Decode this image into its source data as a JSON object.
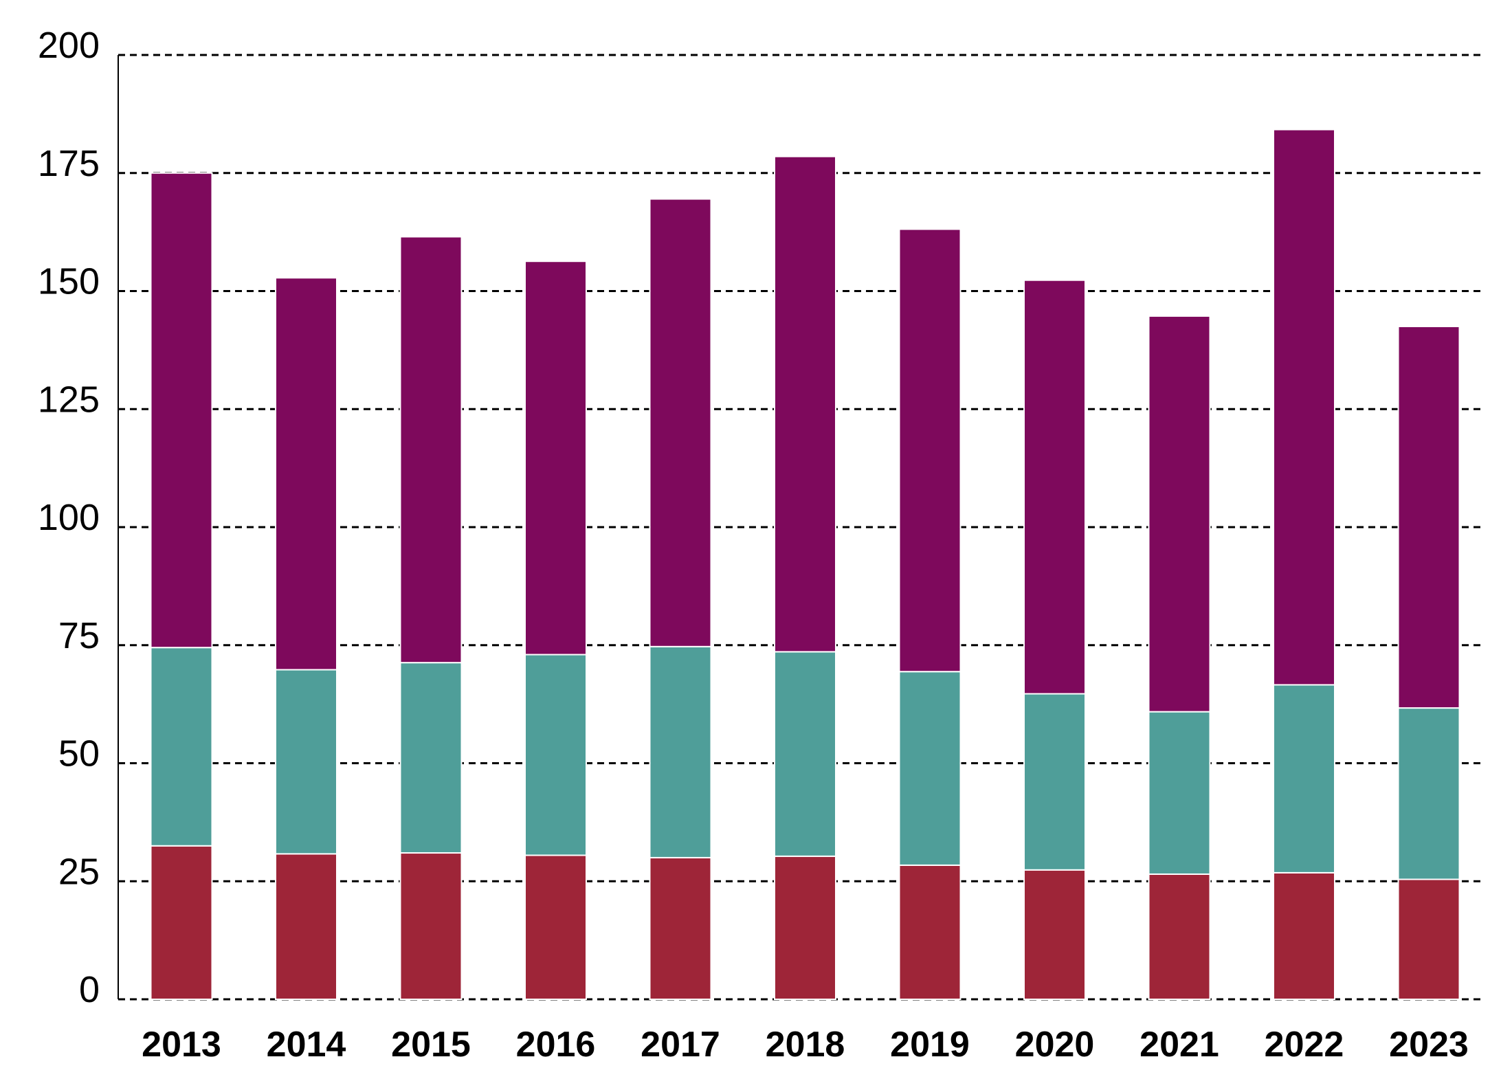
{
  "chart_data": {
    "type": "bar",
    "stacked": true,
    "categories": [
      "2013",
      "2014",
      "2015",
      "2016",
      "2017",
      "2018",
      "2019",
      "2020",
      "2021",
      "2022",
      "2023"
    ],
    "series": [
      {
        "color": "#9e2538",
        "values": [
          32.5,
          30.8,
          31,
          30.5,
          30,
          30.3,
          28.4,
          27.4,
          26.5,
          26.8,
          25.4
        ]
      },
      {
        "color": "#4f9e99",
        "values": [
          42,
          39,
          40.3,
          42.5,
          44.7,
          43.3,
          41,
          37.3,
          34.4,
          39.8,
          36.3
        ]
      },
      {
        "color": "#7e095c",
        "values": [
          100.5,
          83,
          90.2,
          83.3,
          94.8,
          104.9,
          93.7,
          87.6,
          83.8,
          117.6,
          80.8
        ]
      }
    ],
    "ylim": [
      0,
      200
    ],
    "yticks": [
      0,
      25,
      50,
      75,
      100,
      125,
      150,
      175,
      200
    ],
    "grid": true,
    "grid_style": "dashed",
    "legend": "none"
  }
}
